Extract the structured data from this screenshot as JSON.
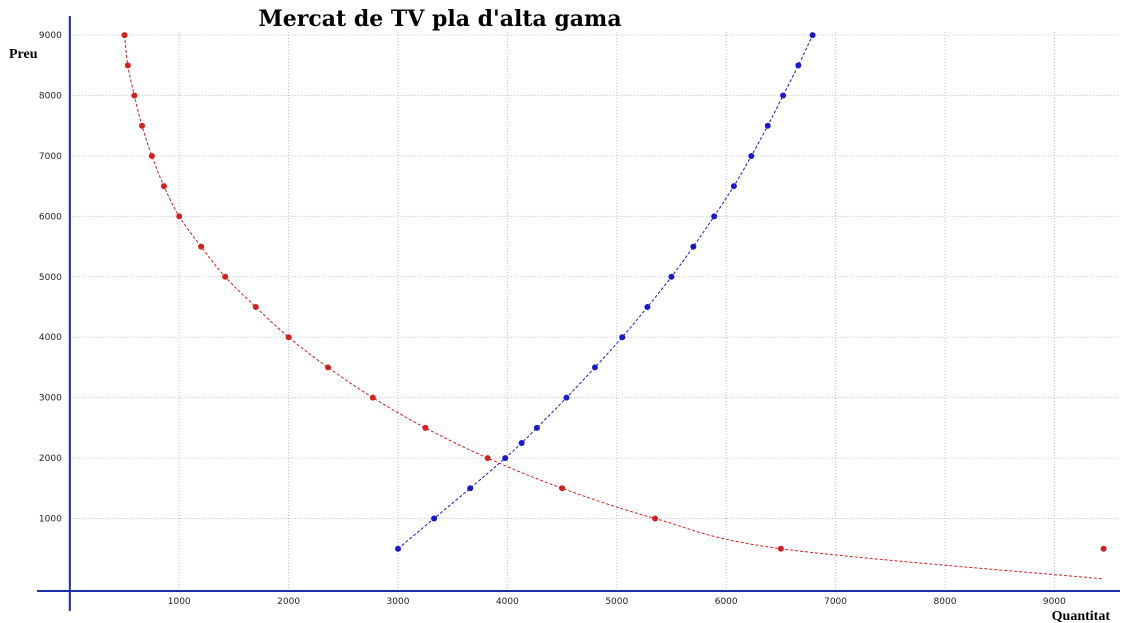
{
  "chart_data": {
    "type": "scatter",
    "title": "Mercat de TV pla d'alta gama",
    "xlabel": "Quantitat",
    "ylabel": "Preu",
    "xlim": [
      -300,
      9600
    ],
    "ylim": [
      -200,
      9250
    ],
    "x_ticks": [
      1000,
      2000,
      3000,
      4000,
      5000,
      6000,
      7000,
      8000,
      9000
    ],
    "y_ticks": [
      1000,
      2000,
      3000,
      4000,
      5000,
      6000,
      7000,
      8000,
      9000
    ],
    "grid": true,
    "colors": {
      "demand": "#d42020",
      "supply": "#1a1acc",
      "axis": "#1a2ea8",
      "grid": "#b8bcd6"
    },
    "series": [
      {
        "x": [
          500,
          530,
          590,
          660,
          750,
          860,
          1000,
          1200,
          1420,
          1700,
          2000,
          2360,
          2770,
          3250,
          3820,
          4500,
          5350,
          6500,
          9450
        ],
        "y": [
          9000,
          8500,
          8000,
          7500,
          7000,
          6500,
          6000,
          5500,
          5000,
          4500,
          4000,
          3500,
          3000,
          2500,
          2000,
          1500,
          1000,
          500,
          0
        ],
        "marker_y": [
          9000,
          8500,
          8000,
          7500,
          7000,
          6500,
          6000,
          5500,
          5000,
          4500,
          4000,
          3500,
          3000,
          2500,
          2000,
          1500,
          1000,
          500,
          0
        ]
      },
      {
        "x": [
          3000,
          3330,
          3660,
          3980,
          4130,
          4270,
          4540,
          4800,
          5050,
          5280,
          5500,
          5700,
          5890,
          6070,
          6230,
          6380,
          6520,
          6660,
          6790
        ],
        "y": [
          500,
          1000,
          1500,
          2000,
          2250,
          2500,
          3000,
          3500,
          4000,
          4500,
          5000,
          5500,
          6000,
          6500,
          7000,
          7500,
          8000,
          8500,
          9000
        ]
      }
    ]
  }
}
